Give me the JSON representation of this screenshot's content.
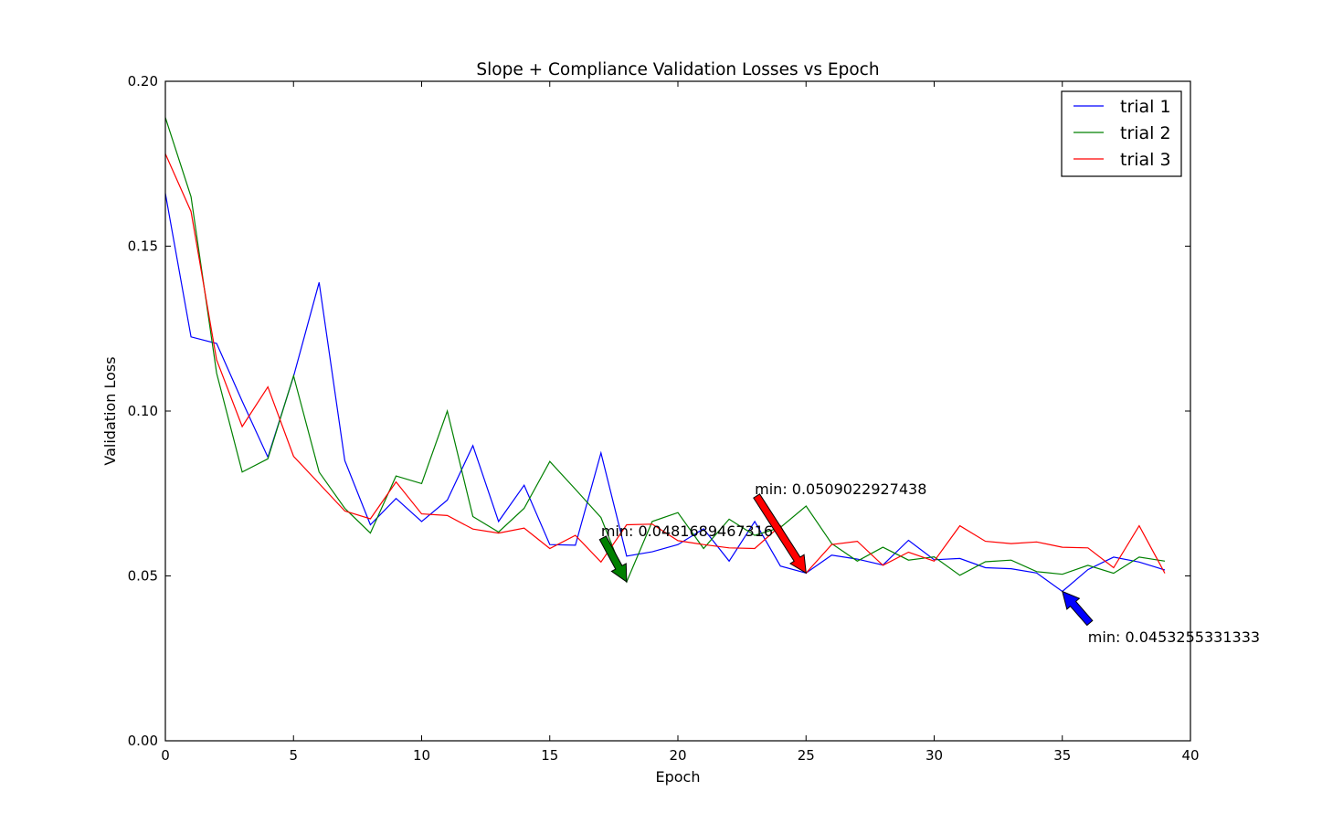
{
  "chart_data": {
    "type": "line",
    "title": "Slope + Compliance Validation Losses vs Epoch",
    "xlabel": "Epoch",
    "ylabel": "Validation Loss",
    "xlim": [
      0,
      40
    ],
    "ylim": [
      0.0,
      0.2
    ],
    "xticks": [
      0,
      5,
      10,
      15,
      20,
      25,
      30,
      35,
      40
    ],
    "xtick_labels": [
      "0",
      "5",
      "10",
      "15",
      "20",
      "25",
      "30",
      "35",
      "40"
    ],
    "yticks": [
      0.0,
      0.05,
      0.1,
      0.15,
      0.2
    ],
    "ytick_labels": [
      "0.00",
      "0.05",
      "0.10",
      "0.15",
      "0.20"
    ],
    "grid": false,
    "legend_position": "top-right",
    "x": [
      0,
      1,
      2,
      3,
      4,
      5,
      6,
      7,
      8,
      9,
      10,
      11,
      12,
      13,
      14,
      15,
      16,
      17,
      18,
      19,
      20,
      21,
      22,
      23,
      24,
      25,
      26,
      27,
      28,
      29,
      30,
      31,
      32,
      33,
      34,
      35,
      36,
      37,
      38,
      39
    ],
    "series": [
      {
        "name": "trial 1",
        "color": "#0000ff",
        "values": [
          0.166,
          0.1225,
          0.1205,
          0.103,
          0.086,
          0.1105,
          0.139,
          0.085,
          0.0655,
          0.0735,
          0.0665,
          0.073,
          0.0895,
          0.0665,
          0.0775,
          0.0595,
          0.0593,
          0.0873,
          0.056,
          0.0573,
          0.0595,
          0.0643,
          0.0545,
          0.0665,
          0.053,
          0.0509,
          0.0563,
          0.0551,
          0.0533,
          0.0608,
          0.0549,
          0.0553,
          0.0525,
          0.0522,
          0.0509,
          0.0453,
          0.0519,
          0.0557,
          0.0542,
          0.0518
        ]
      },
      {
        "name": "trial 2",
        "color": "#008000",
        "values": [
          0.189,
          0.165,
          0.1115,
          0.0815,
          0.0855,
          0.1107,
          0.0815,
          0.0705,
          0.063,
          0.0803,
          0.078,
          0.1,
          0.068,
          0.0633,
          0.0705,
          0.0847,
          0.0763,
          0.0677,
          0.0482,
          0.0665,
          0.0692,
          0.0583,
          0.0672,
          0.0623,
          0.0647,
          0.0712,
          0.0598,
          0.0545,
          0.0587,
          0.0548,
          0.0558,
          0.0502,
          0.0543,
          0.0548,
          0.0513,
          0.0505,
          0.0532,
          0.0508,
          0.0557,
          0.0545
        ]
      },
      {
        "name": "trial 3",
        "color": "#ff0000",
        "values": [
          0.178,
          0.1605,
          0.1155,
          0.0953,
          0.1073,
          0.0863,
          0.078,
          0.0697,
          0.0673,
          0.0785,
          0.0688,
          0.0683,
          0.0642,
          0.063,
          0.0645,
          0.0583,
          0.0623,
          0.0542,
          0.0655,
          0.0657,
          0.0607,
          0.0595,
          0.0585,
          0.0583,
          0.0652,
          0.0509,
          0.0595,
          0.0605,
          0.0532,
          0.0572,
          0.0545,
          0.0652,
          0.0605,
          0.0598,
          0.0603,
          0.0587,
          0.0585,
          0.0525,
          0.0652,
          0.0508
        ]
      }
    ],
    "annotations": [
      {
        "text": "min: 0.0453255331333",
        "xy": [
          35,
          0.0453
        ],
        "xytext": [
          36,
          0.0313
        ],
        "color": "#0000ff"
      },
      {
        "text": "min: 0.0481689467316",
        "xy": [
          18,
          0.0482
        ],
        "xytext": [
          17,
          0.0635
        ],
        "color": "#008000"
      },
      {
        "text": "min: 0.0509022927438",
        "xy": [
          25,
          0.0509
        ],
        "xytext": [
          23,
          0.0762
        ],
        "color": "#ff0000"
      }
    ]
  }
}
